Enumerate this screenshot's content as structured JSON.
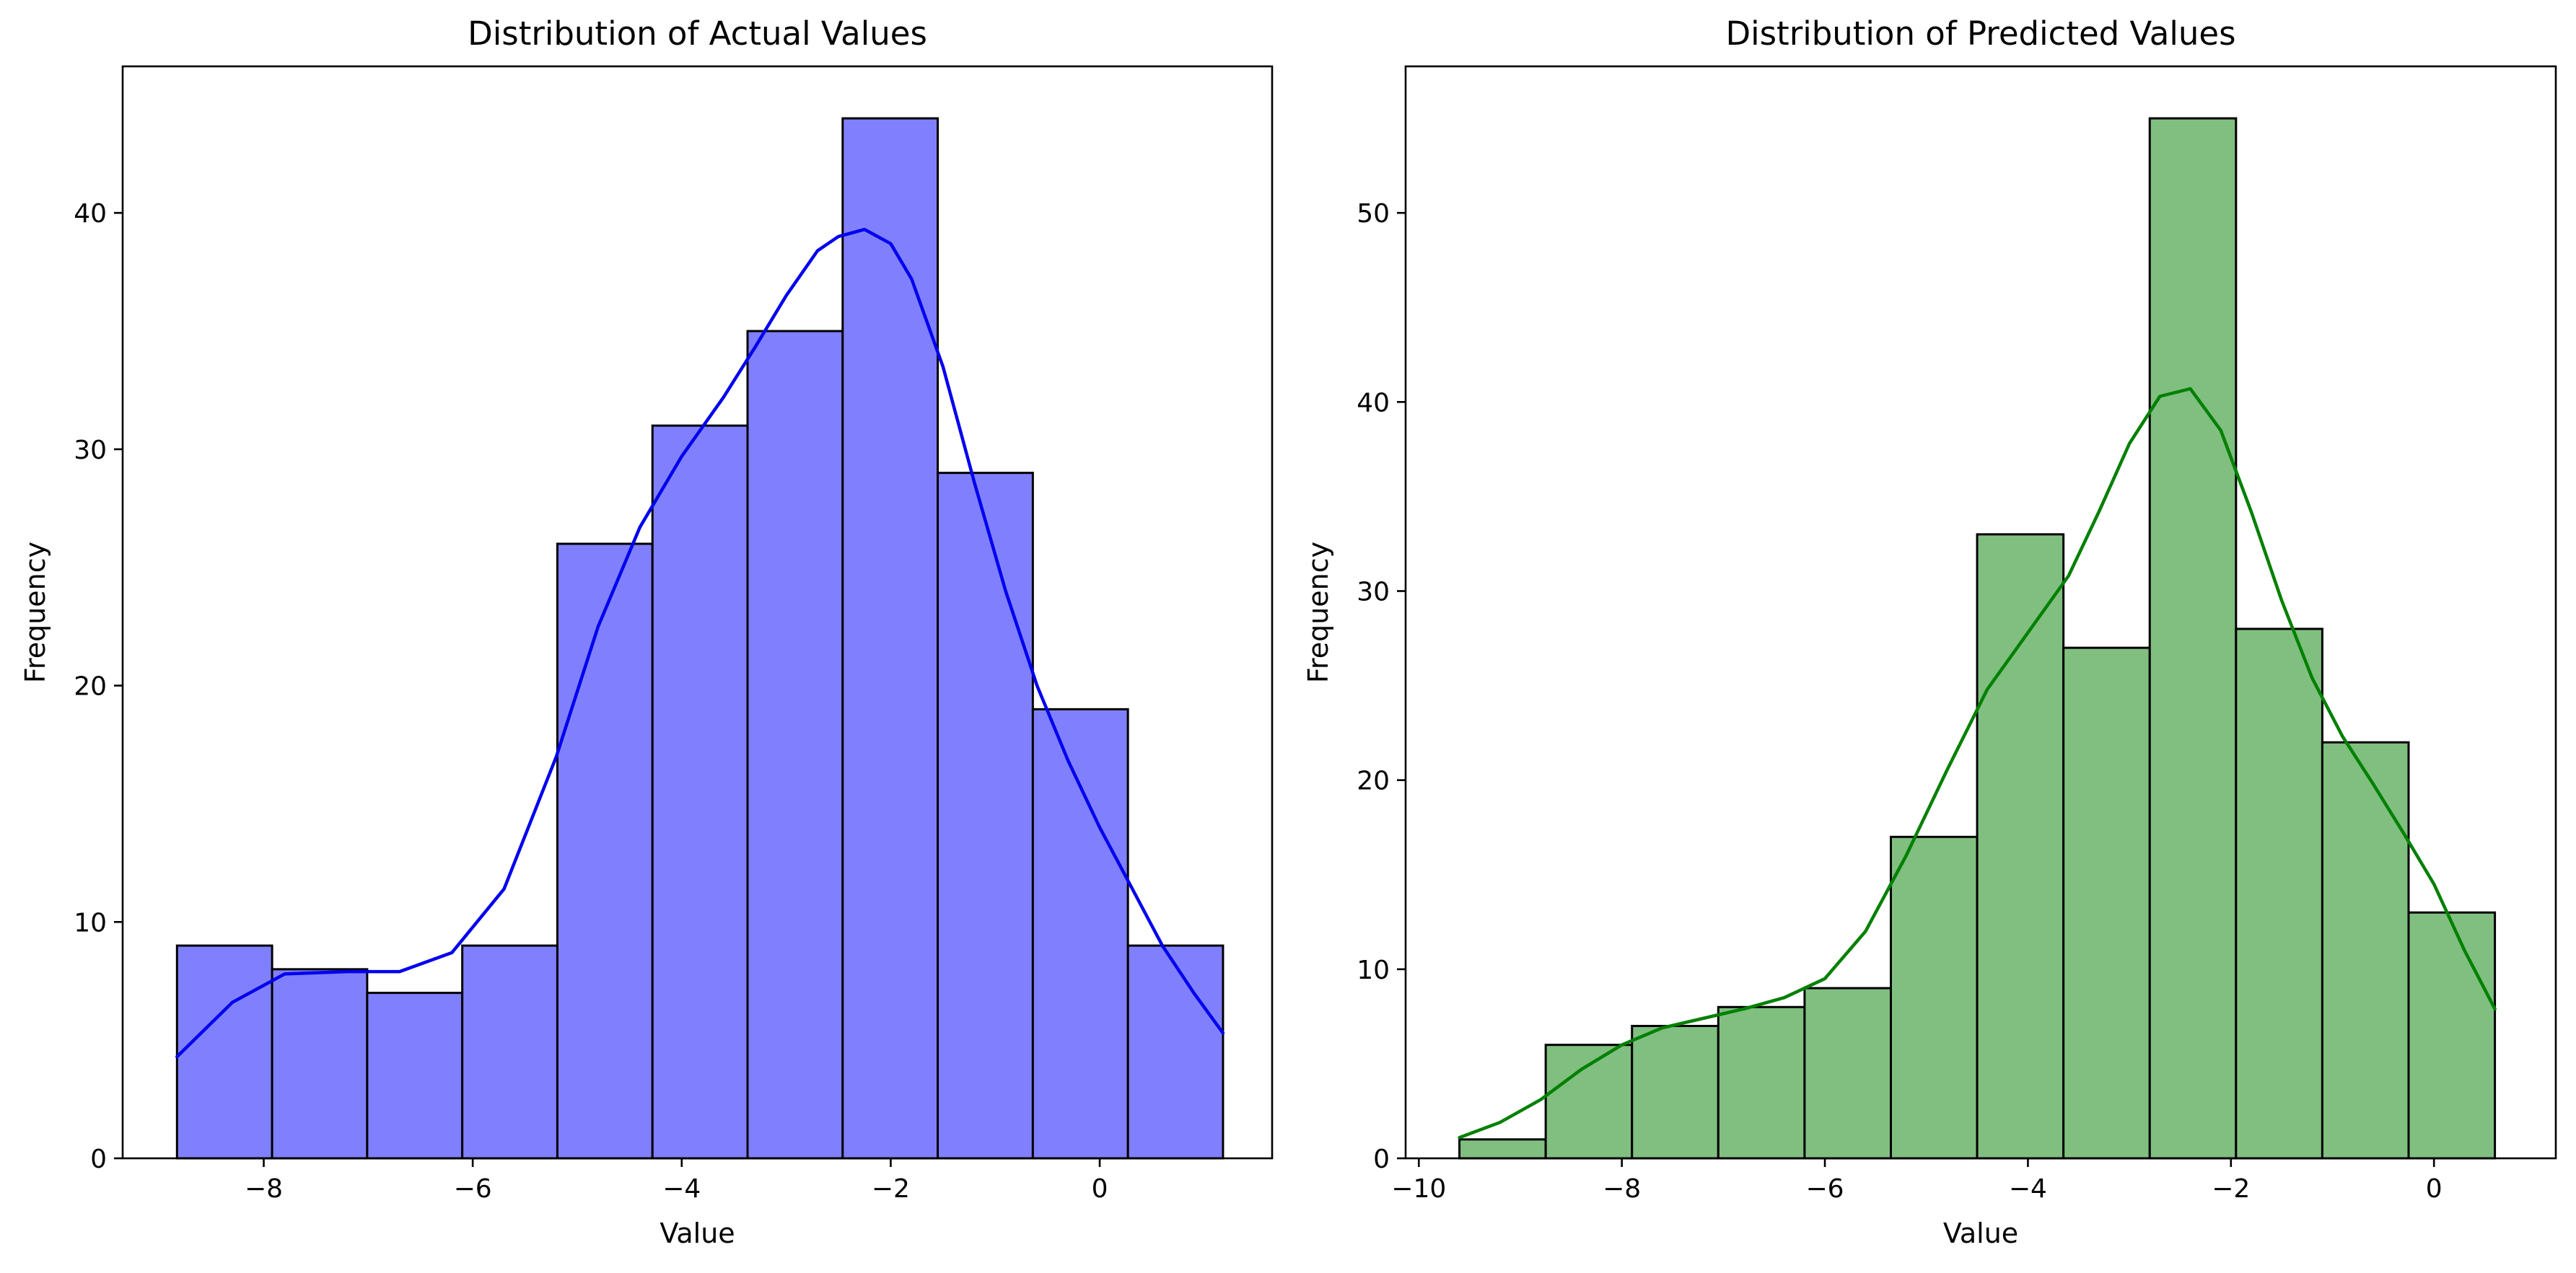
{
  "chart_data": [
    {
      "type": "bar",
      "title": "Distribution of Actual Values",
      "xlabel": "Value",
      "ylabel": "Frequency",
      "xlim": [
        -9.35,
        1.65
      ],
      "ylim": [
        0,
        46.2
      ],
      "xticks": [
        -8,
        -6,
        -4,
        -2,
        0
      ],
      "xtick_labels": [
        "−8",
        "−6",
        "−4",
        "−2",
        "0"
      ],
      "yticks": [
        0,
        10,
        20,
        30,
        40
      ],
      "ytick_labels": [
        "0",
        "10",
        "20",
        "30",
        "40"
      ],
      "bin_edges": [
        -8.83,
        -7.92,
        -7.01,
        -6.1,
        -5.19,
        -4.28,
        -3.37,
        -2.46,
        -1.55,
        -0.64,
        0.27,
        1.18
      ],
      "values": [
        9,
        8,
        7,
        9,
        26,
        31,
        35,
        44,
        29,
        19,
        9
      ],
      "bar_color": "#8080ff",
      "kde_color": "#0000ee",
      "kde": {
        "x": [
          -8.83,
          -8.3,
          -7.8,
          -7.2,
          -6.7,
          -6.2,
          -5.7,
          -5.2,
          -4.8,
          -4.4,
          -4.0,
          -3.6,
          -3.3,
          -3.0,
          -2.7,
          -2.5,
          -2.25,
          -2.0,
          -1.8,
          -1.5,
          -1.2,
          -0.9,
          -0.6,
          -0.3,
          0.0,
          0.3,
          0.6,
          0.9,
          1.18
        ],
        "y": [
          4.3,
          6.6,
          7.8,
          7.9,
          7.9,
          8.7,
          11.4,
          17.0,
          22.5,
          26.7,
          29.7,
          32.2,
          34.3,
          36.5,
          38.4,
          39.0,
          39.3,
          38.7,
          37.2,
          33.5,
          28.6,
          24.0,
          20.0,
          16.8,
          14.0,
          11.5,
          9.0,
          7.0,
          5.3
        ]
      }
    },
    {
      "type": "bar",
      "title": "Distribution of Predicted Values",
      "xlabel": "Value",
      "ylabel": "Frequency",
      "xlim": [
        -10.13,
        1.2
      ],
      "ylim": [
        0,
        57.75
      ],
      "xticks": [
        -10,
        -8,
        -6,
        -4,
        -2,
        0
      ],
      "xtick_labels": [
        "−10",
        "−8",
        "−6",
        "−4",
        "−2",
        "0"
      ],
      "yticks": [
        0,
        10,
        20,
        30,
        40,
        50
      ],
      "ytick_labels": [
        "0",
        "10",
        "20",
        "30",
        "40",
        "50"
      ],
      "bin_edges": [
        -9.6,
        -8.75,
        -7.9,
        -7.05,
        -6.2,
        -5.35,
        -4.5,
        -3.65,
        -2.8,
        -1.95,
        -1.1,
        -0.25,
        0.6
      ],
      "values": [
        1,
        6,
        7,
        8,
        9,
        17,
        33,
        27,
        55,
        28,
        22,
        13
      ],
      "bar_color": "#80bf80",
      "kde_color": "#008000",
      "kde": {
        "x": [
          -9.6,
          -9.2,
          -8.8,
          -8.4,
          -8.0,
          -7.6,
          -7.2,
          -6.8,
          -6.4,
          -6.0,
          -5.6,
          -5.2,
          -4.8,
          -4.4,
          -4.0,
          -3.6,
          -3.3,
          -3.0,
          -2.7,
          -2.4,
          -2.1,
          -1.8,
          -1.5,
          -1.2,
          -0.9,
          -0.6,
          -0.3,
          0.0,
          0.3,
          0.6
        ],
        "y": [
          1.1,
          1.9,
          3.1,
          4.7,
          6.0,
          6.9,
          7.4,
          7.9,
          8.5,
          9.5,
          12.0,
          16.0,
          20.5,
          24.8,
          27.8,
          30.8,
          34.2,
          37.8,
          40.3,
          40.7,
          38.5,
          34.2,
          29.5,
          25.4,
          22.3,
          19.8,
          17.2,
          14.5,
          11.0,
          7.9
        ]
      }
    }
  ]
}
